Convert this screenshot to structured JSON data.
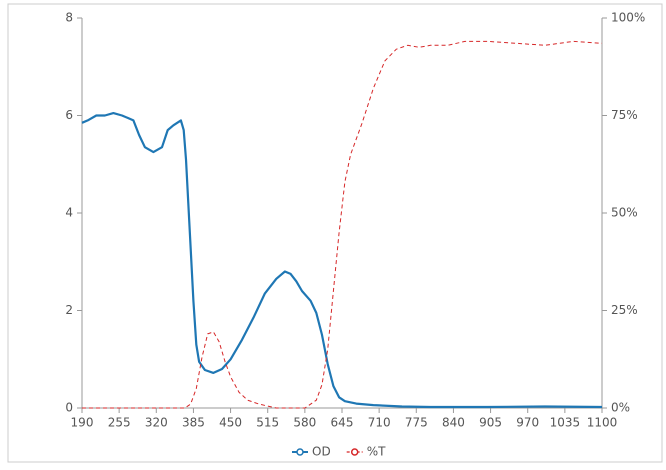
{
  "chart_data": {
    "type": "line",
    "xlim": [
      190,
      1100
    ],
    "xticks": [
      190,
      255,
      320,
      385,
      450,
      515,
      580,
      645,
      710,
      775,
      840,
      905,
      970,
      1035,
      1100
    ],
    "ylim": [
      0,
      8
    ],
    "yticks": [
      0,
      2,
      4,
      6,
      8
    ],
    "y2lim": [
      0,
      100
    ],
    "y2ticks": [
      {
        "value": 0,
        "label": "0%"
      },
      {
        "value": 25,
        "label": "25%"
      },
      {
        "value": 50,
        "label": "50%"
      },
      {
        "value": 75,
        "label": "75%"
      },
      {
        "value": 100,
        "label": "100%"
      }
    ],
    "legend": "bottom",
    "series": [
      {
        "name": "OD",
        "color": "#1f77b4",
        "style": "solid",
        "x": [
          190,
          200,
          215,
          230,
          245,
          260,
          270,
          280,
          290,
          300,
          315,
          330,
          340,
          350,
          363,
          368,
          372,
          376,
          380,
          385,
          390,
          395,
          405,
          420,
          435,
          450,
          470,
          490,
          510,
          530,
          545,
          555,
          565,
          575,
          590,
          600,
          610,
          620,
          630,
          640,
          650,
          670,
          700,
          750,
          800,
          900,
          1000,
          1100
        ],
        "values": [
          5.85,
          5.9,
          6.0,
          6.0,
          6.05,
          6.0,
          5.95,
          5.9,
          5.6,
          5.35,
          5.25,
          5.35,
          5.7,
          5.8,
          5.9,
          5.7,
          5.1,
          4.2,
          3.3,
          2.2,
          1.3,
          0.95,
          0.78,
          0.72,
          0.8,
          1.0,
          1.4,
          1.85,
          2.35,
          2.65,
          2.8,
          2.75,
          2.6,
          2.4,
          2.2,
          1.95,
          1.5,
          0.9,
          0.45,
          0.22,
          0.14,
          0.09,
          0.06,
          0.03,
          0.02,
          0.02,
          0.03,
          0.02
        ]
      },
      {
        "name": "%T",
        "color": "#d62728",
        "style": "dashed",
        "axis": "y2",
        "x": [
          190,
          370,
          380,
          390,
          400,
          410,
          420,
          430,
          440,
          450,
          465,
          480,
          500,
          530,
          580,
          600,
          610,
          620,
          630,
          640,
          650,
          660,
          680,
          700,
          720,
          740,
          760,
          780,
          800,
          830,
          860,
          900,
          950,
          1000,
          1050,
          1100
        ],
        "values": [
          0,
          0,
          1,
          5,
          13,
          19,
          19.5,
          17,
          12,
          8,
          4,
          2,
          1,
          0,
          0,
          2,
          6,
          15,
          30,
          45,
          58,
          65,
          73,
          82,
          89,
          92,
          93,
          92.5,
          93,
          93,
          94,
          94,
          93.5,
          93,
          94,
          93.5
        ]
      }
    ]
  }
}
